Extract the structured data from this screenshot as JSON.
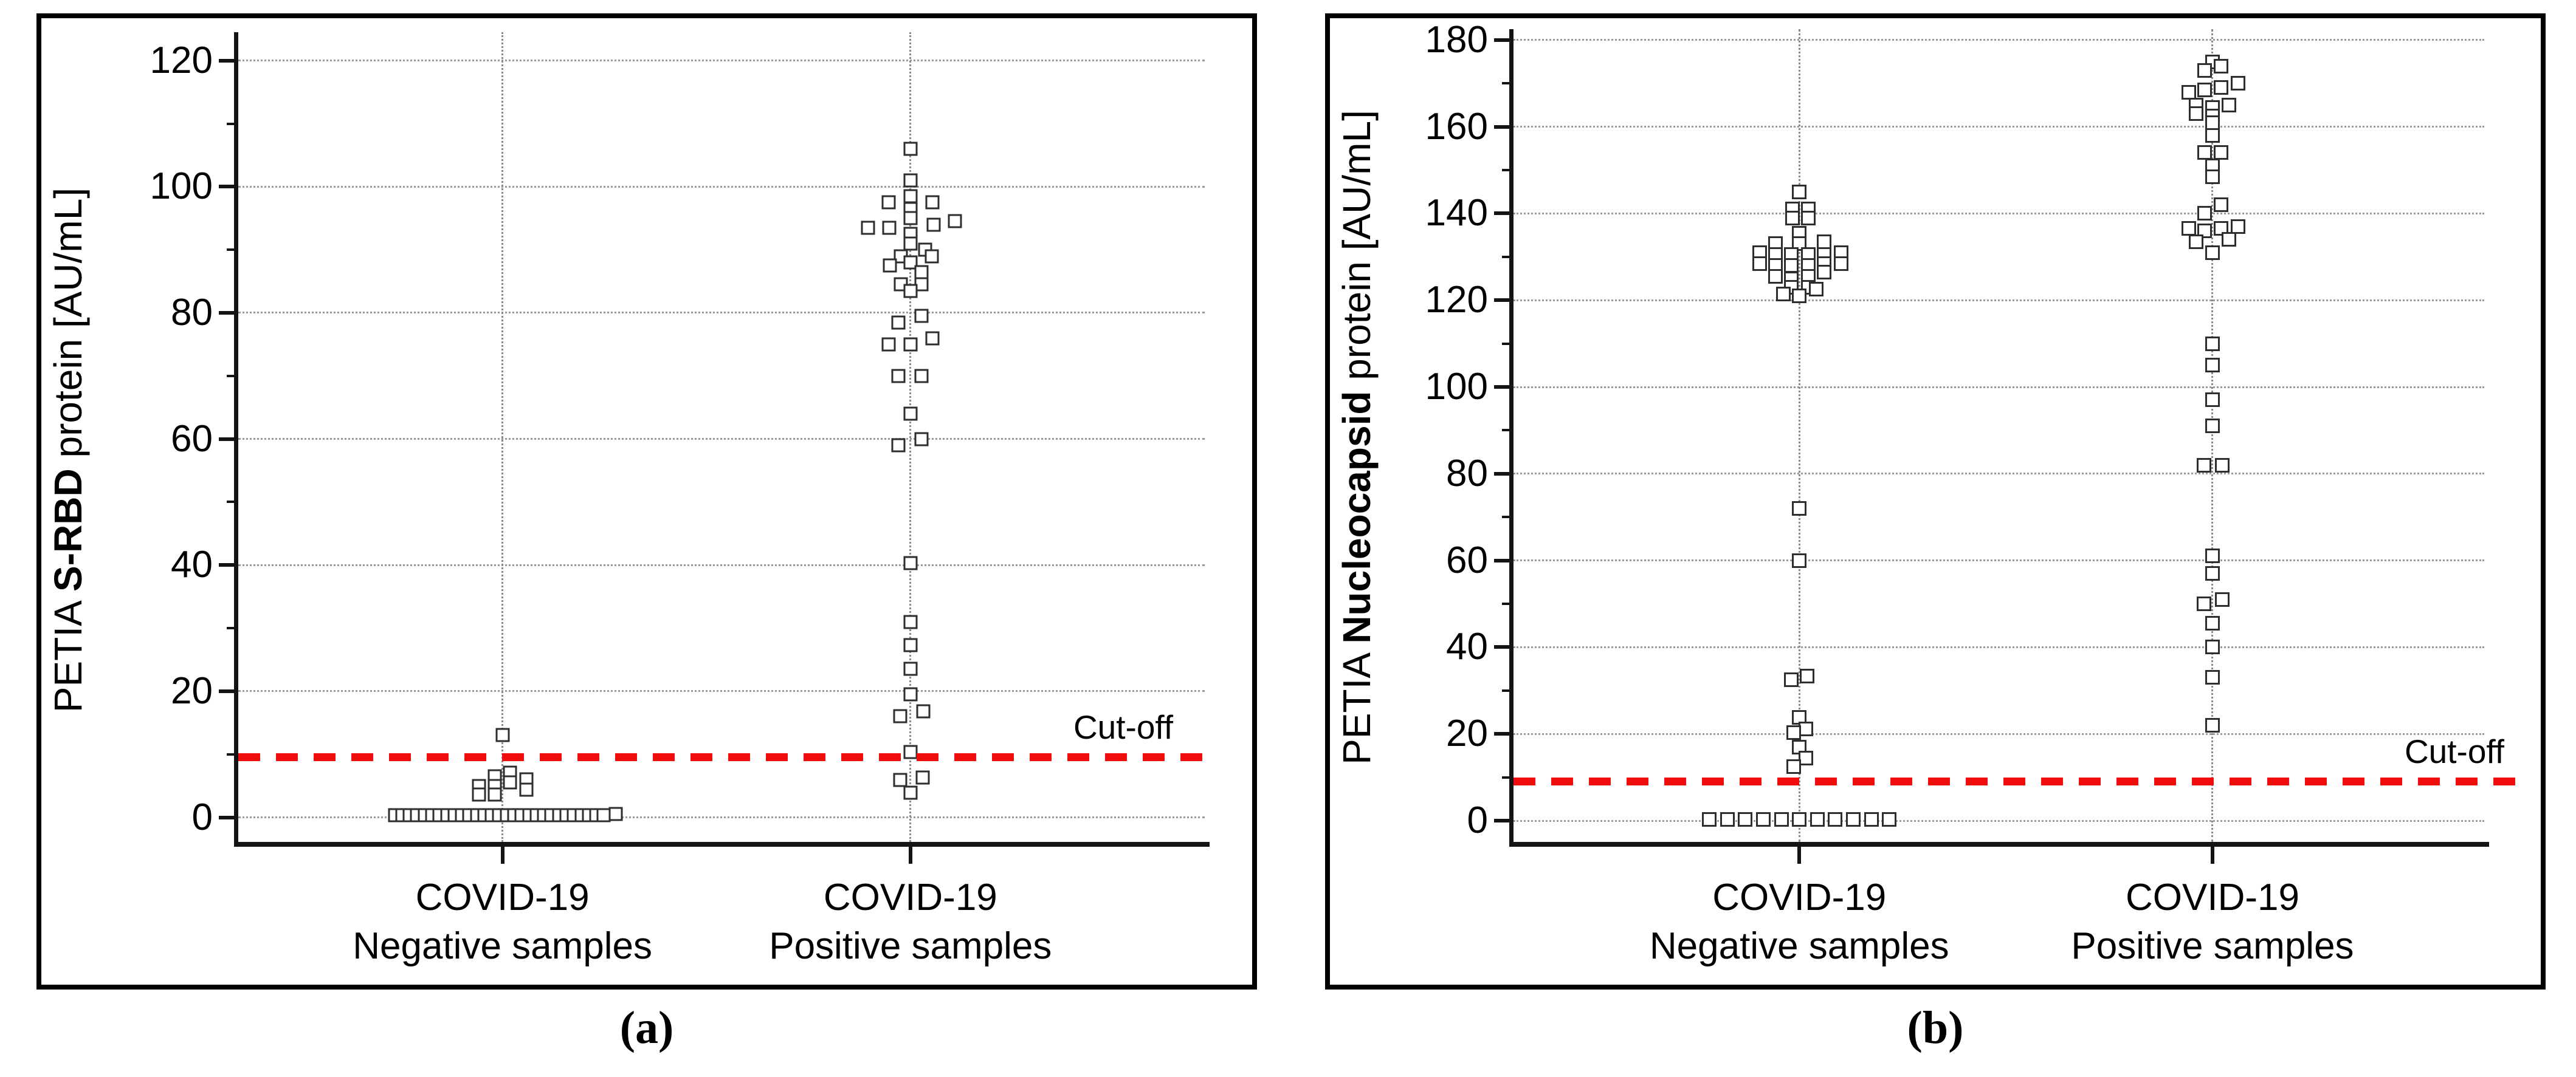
{
  "colors": {
    "cutoff_red": "#ee0c0c",
    "axis": "#141414",
    "grid": "#9b9b9b",
    "square_border": "#2e2e2e",
    "text": "#000000"
  },
  "chart_data": [
    {
      "type": "scatter",
      "panel": "a",
      "panel_caption": "(a)",
      "ylabel": "PETIA S-RBD protein [AU/mL]",
      "ylabel_prefix": "PETIA ",
      "ylabel_bold": "S-RBD",
      "ylabel_suffix": " protein [AU/mL]",
      "ylim": [
        0,
        120
      ],
      "yticks": [
        0,
        20,
        40,
        60,
        80,
        100,
        120
      ],
      "yminor": [
        10,
        30,
        50,
        70,
        90,
        110
      ],
      "grid": "dotted-horizontal",
      "cutoff": 9.5,
      "cutoff_label": "Cut-off",
      "categories": [
        "COVID-19 Negative samples",
        "COVID-19 Positive samples"
      ],
      "groups": [
        {
          "label_line1": "COVID-19",
          "label_line2": "Negative samples",
          "x_frac": 0.272,
          "points": [
            {
              "v": 13.1,
              "dx": 0
            },
            {
              "v": 7.1,
              "dx": 12
            },
            {
              "v": 6.5,
              "dx": -13
            },
            {
              "v": 6.0,
              "dx": 39
            },
            {
              "v": 5.5,
              "dx": 12
            },
            {
              "v": 5.0,
              "dx": -39
            },
            {
              "v": 5.0,
              "dx": -13
            },
            {
              "v": 4.4,
              "dx": 39
            },
            {
              "v": 3.6,
              "dx": -39
            },
            {
              "v": 3.6,
              "dx": -13
            },
            {
              "v": 0.3,
              "dx": -177
            },
            {
              "v": 0.3,
              "dx": -164.7
            },
            {
              "v": 0.3,
              "dx": -152.5
            },
            {
              "v": 0.3,
              "dx": -140.2
            },
            {
              "v": 0.3,
              "dx": -127.9
            },
            {
              "v": 0.3,
              "dx": -115.6
            },
            {
              "v": 0.3,
              "dx": -103.4
            },
            {
              "v": 0.3,
              "dx": -91.1
            },
            {
              "v": 0.3,
              "dx": -78.8
            },
            {
              "v": 0.3,
              "dx": -66.5
            },
            {
              "v": 0.3,
              "dx": -54.3
            },
            {
              "v": 0.3,
              "dx": -42
            },
            {
              "v": 0.3,
              "dx": -29.7
            },
            {
              "v": 0.3,
              "dx": -17.4
            },
            {
              "v": 0.3,
              "dx": -5.2
            },
            {
              "v": 0.3,
              "dx": 7.1
            },
            {
              "v": 0.3,
              "dx": 19.4
            },
            {
              "v": 0.3,
              "dx": 31.7
            },
            {
              "v": 0.3,
              "dx": 43.9
            },
            {
              "v": 0.3,
              "dx": 56.2
            },
            {
              "v": 0.3,
              "dx": 68.5
            },
            {
              "v": 0.3,
              "dx": 80.8
            },
            {
              "v": 0.3,
              "dx": 93
            },
            {
              "v": 0.3,
              "dx": 105.3
            },
            {
              "v": 0.3,
              "dx": 117.6
            },
            {
              "v": 0.3,
              "dx": 129.9
            },
            {
              "v": 0.3,
              "dx": 142.1
            },
            {
              "v": 0.3,
              "dx": 154.4
            },
            {
              "v": 0.3,
              "dx": 166.7
            },
            {
              "v": 0.5,
              "dx": 186
            }
          ]
        },
        {
          "label_line1": "COVID-19",
          "label_line2": "Positive samples",
          "x_frac": 0.692,
          "points": [
            {
              "v": 106,
              "dx": 0
            },
            {
              "v": 101,
              "dx": 0
            },
            {
              "v": 98.5,
              "dx": 0
            },
            {
              "v": 97.5,
              "dx": -36
            },
            {
              "v": 97.5,
              "dx": 36
            },
            {
              "v": 96.5,
              "dx": 0
            },
            {
              "v": 95,
              "dx": 0
            },
            {
              "v": 94.5,
              "dx": 73
            },
            {
              "v": 94,
              "dx": 38
            },
            {
              "v": 93.5,
              "dx": -70
            },
            {
              "v": 93.5,
              "dx": -35
            },
            {
              "v": 92.5,
              "dx": 0
            },
            {
              "v": 91,
              "dx": 0
            },
            {
              "v": 90,
              "dx": 24
            },
            {
              "v": 89,
              "dx": -16
            },
            {
              "v": 89,
              "dx": 35
            },
            {
              "v": 88,
              "dx": 0
            },
            {
              "v": 87.5,
              "dx": -34
            },
            {
              "v": 86.5,
              "dx": 18
            },
            {
              "v": 84.5,
              "dx": -16
            },
            {
              "v": 84.5,
              "dx": 18
            },
            {
              "v": 83.5,
              "dx": 0
            },
            {
              "v": 79.5,
              "dx": 18
            },
            {
              "v": 78.5,
              "dx": -20
            },
            {
              "v": 76,
              "dx": 36
            },
            {
              "v": 75,
              "dx": -36
            },
            {
              "v": 75,
              "dx": 0
            },
            {
              "v": 70,
              "dx": -20
            },
            {
              "v": 70,
              "dx": 18
            },
            {
              "v": 64,
              "dx": 0
            },
            {
              "v": 60,
              "dx": 18
            },
            {
              "v": 59,
              "dx": -20
            },
            {
              "v": 40.3,
              "dx": 0
            },
            {
              "v": 31,
              "dx": 0
            },
            {
              "v": 27.3,
              "dx": 0
            },
            {
              "v": 23.6,
              "dx": 0
            },
            {
              "v": 19.5,
              "dx": 0
            },
            {
              "v": 16.8,
              "dx": 21
            },
            {
              "v": 16,
              "dx": -17
            },
            {
              "v": 10.4,
              "dx": 0
            },
            {
              "v": 6.3,
              "dx": 20
            },
            {
              "v": 5.9,
              "dx": -17
            },
            {
              "v": 3.9,
              "dx": 0
            }
          ]
        }
      ]
    },
    {
      "type": "scatter",
      "panel": "b",
      "panel_caption": "(b)",
      "ylabel": "PETIA Nucleocapsid protein [AU/mL]",
      "ylabel_prefix": "PETIA ",
      "ylabel_bold": "Nucleocapsid",
      "ylabel_suffix": " protein [AU/mL]",
      "ylim": [
        0,
        180
      ],
      "yticks": [
        0,
        20,
        40,
        60,
        80,
        100,
        120,
        140,
        160,
        180
      ],
      "yminor": [
        10,
        30,
        50,
        70,
        90,
        110,
        130,
        150,
        170
      ],
      "grid": "dotted-horizontal",
      "cutoff": 9.0,
      "cutoff_label": "Cut-off",
      "categories": [
        "COVID-19 Negative samples",
        "COVID-19 Positive samples"
      ],
      "groups": [
        {
          "label_line1": "COVID-19",
          "label_line2": "Negative samples",
          "x_frac": 0.293,
          "points": [
            {
              "v": 145,
              "dx": 0
            },
            {
              "v": 141,
              "dx": -11
            },
            {
              "v": 141,
              "dx": 15
            },
            {
              "v": 139,
              "dx": -11
            },
            {
              "v": 139,
              "dx": 15
            },
            {
              "v": 135.5,
              "dx": 0
            },
            {
              "v": 133.5,
              "dx": 41
            },
            {
              "v": 133,
              "dx": -39
            },
            {
              "v": 133,
              "dx": 0
            },
            {
              "v": 131,
              "dx": 69
            },
            {
              "v": 131,
              "dx": -65
            },
            {
              "v": 130.5,
              "dx": -39
            },
            {
              "v": 130.5,
              "dx": -13
            },
            {
              "v": 130.5,
              "dx": 15
            },
            {
              "v": 130.5,
              "dx": 41
            },
            {
              "v": 128.5,
              "dx": -65
            },
            {
              "v": 128,
              "dx": -39
            },
            {
              "v": 128,
              "dx": -13
            },
            {
              "v": 128,
              "dx": 15
            },
            {
              "v": 128.5,
              "dx": 41
            },
            {
              "v": 128.5,
              "dx": 69
            },
            {
              "v": 126.5,
              "dx": 41
            },
            {
              "v": 125.5,
              "dx": -39
            },
            {
              "v": 125,
              "dx": -13
            },
            {
              "v": 125.5,
              "dx": 15
            },
            {
              "v": 123,
              "dx": -13
            },
            {
              "v": 123,
              "dx": 15
            },
            {
              "v": 122.5,
              "dx": 28
            },
            {
              "v": 121.5,
              "dx": -26
            },
            {
              "v": 121,
              "dx": 0
            },
            {
              "v": 72,
              "dx": 0
            },
            {
              "v": 60,
              "dx": 0
            },
            {
              "v": 33.3,
              "dx": 13
            },
            {
              "v": 32.5,
              "dx": -13
            },
            {
              "v": 23.8,
              "dx": 0
            },
            {
              "v": 21.2,
              "dx": 11
            },
            {
              "v": 20.3,
              "dx": -9
            },
            {
              "v": 16.9,
              "dx": 0
            },
            {
              "v": 14.4,
              "dx": 11
            },
            {
              "v": 12.5,
              "dx": -9
            },
            {
              "v": 0.3,
              "dx": -148
            },
            {
              "v": 0.3,
              "dx": -118.4
            },
            {
              "v": 0.3,
              "dx": -88.8
            },
            {
              "v": 0.3,
              "dx": -59.2
            },
            {
              "v": 0.3,
              "dx": -29.6
            },
            {
              "v": 0.3,
              "dx": 0
            },
            {
              "v": 0.3,
              "dx": 29.6
            },
            {
              "v": 0.3,
              "dx": 59.2
            },
            {
              "v": 0.3,
              "dx": 88.8
            },
            {
              "v": 0.3,
              "dx": 118.4
            },
            {
              "v": 0.3,
              "dx": 148
            }
          ]
        },
        {
          "label_line1": "COVID-19",
          "label_line2": "Positive samples",
          "x_frac": 0.7165,
          "points": [
            {
              "v": 175,
              "dx": 0
            },
            {
              "v": 174,
              "dx": 14
            },
            {
              "v": 173,
              "dx": -13
            },
            {
              "v": 170,
              "dx": 42
            },
            {
              "v": 169,
              "dx": 14
            },
            {
              "v": 168.5,
              "dx": -13
            },
            {
              "v": 168,
              "dx": -39
            },
            {
              "v": 165,
              "dx": -27
            },
            {
              "v": 165,
              "dx": 27
            },
            {
              "v": 164.5,
              "dx": 0
            },
            {
              "v": 163,
              "dx": -27
            },
            {
              "v": 162.5,
              "dx": 0
            },
            {
              "v": 161,
              "dx": 0
            },
            {
              "v": 158,
              "dx": 0
            },
            {
              "v": 154,
              "dx": -13
            },
            {
              "v": 154,
              "dx": 14
            },
            {
              "v": 151,
              "dx": 0
            },
            {
              "v": 148.5,
              "dx": 0
            },
            {
              "v": 142,
              "dx": 14
            },
            {
              "v": 140,
              "dx": -13
            },
            {
              "v": 137,
              "dx": 42
            },
            {
              "v": 136.5,
              "dx": -39
            },
            {
              "v": 136.5,
              "dx": 14
            },
            {
              "v": 136,
              "dx": -13
            },
            {
              "v": 134,
              "dx": 27
            },
            {
              "v": 133.5,
              "dx": -27
            },
            {
              "v": 131,
              "dx": 0
            },
            {
              "v": 110,
              "dx": 0
            },
            {
              "v": 105,
              "dx": 0
            },
            {
              "v": 97,
              "dx": 0
            },
            {
              "v": 91,
              "dx": 0
            },
            {
              "v": 82,
              "dx": -14
            },
            {
              "v": 82,
              "dx": 16
            },
            {
              "v": 61,
              "dx": 0
            },
            {
              "v": 57,
              "dx": 0
            },
            {
              "v": 51,
              "dx": 16
            },
            {
              "v": 50,
              "dx": -14
            },
            {
              "v": 45.5,
              "dx": 0
            },
            {
              "v": 40,
              "dx": 0
            },
            {
              "v": 33,
              "dx": 0
            },
            {
              "v": 22,
              "dx": 0
            }
          ]
        }
      ]
    }
  ]
}
